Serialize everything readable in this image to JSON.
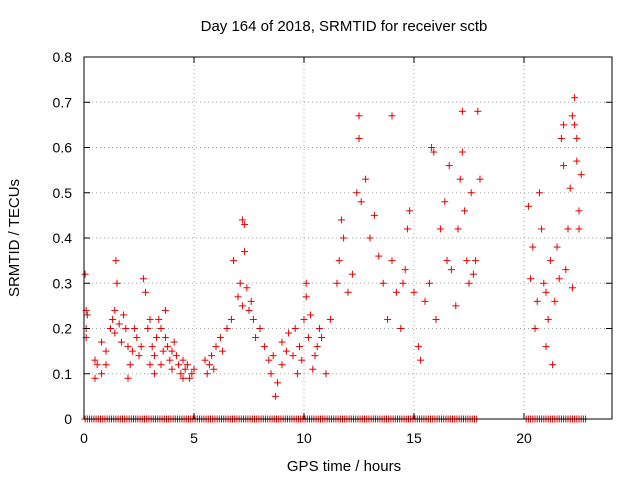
{
  "chart_data": {
    "type": "scatter",
    "title": "Day 164 of 2018, SRMTID for receiver sctb",
    "xlabel": "GPS time / hours",
    "ylabel": "SRMTID / TECUs",
    "xlim": [
      0,
      24
    ],
    "ylim": [
      0,
      0.8
    ],
    "xticks": [
      0,
      5,
      10,
      15,
      20
    ],
    "xtick_labels": [
      "0",
      "5",
      "10",
      "15",
      "20"
    ],
    "yticks": [
      0,
      0.1,
      0.2,
      0.3,
      0.4,
      0.5,
      0.6,
      0.7,
      0.8
    ],
    "ytick_labels": [
      "0",
      "0.1",
      "0.2",
      "0.3",
      "0.4",
      "0.5",
      "0.6",
      "0.7",
      "0.8"
    ],
    "grid": true,
    "marker": "+",
    "marker_color": "#e00000",
    "series": [
      {
        "name": "SRMTID",
        "points": [
          [
            0.05,
            0.32
          ],
          [
            0.1,
            0.24
          ],
          [
            0.1,
            0.2
          ],
          [
            0.1,
            0.18
          ],
          [
            0.15,
            0.23
          ],
          [
            0.5,
            0.13
          ],
          [
            0.5,
            0.09
          ],
          [
            0.6,
            0.12
          ],
          [
            0.8,
            0.17
          ],
          [
            0.8,
            0.1
          ],
          [
            1.0,
            0.15
          ],
          [
            1.0,
            0.12
          ],
          [
            1.2,
            0.2
          ],
          [
            1.3,
            0.22
          ],
          [
            1.4,
            0.19
          ],
          [
            1.4,
            0.24
          ],
          [
            1.45,
            0.35
          ],
          [
            1.5,
            0.3
          ],
          [
            1.6,
            0.21
          ],
          [
            1.7,
            0.17
          ],
          [
            1.8,
            0.23
          ],
          [
            1.9,
            0.2
          ],
          [
            2.0,
            0.16
          ],
          [
            2.0,
            0.09
          ],
          [
            2.1,
            0.12
          ],
          [
            2.2,
            0.15
          ],
          [
            2.3,
            0.2
          ],
          [
            2.4,
            0.18
          ],
          [
            2.5,
            0.14
          ],
          [
            2.6,
            0.16
          ],
          [
            2.7,
            0.31
          ],
          [
            2.8,
            0.28
          ],
          [
            2.9,
            0.2
          ],
          [
            3.0,
            0.22
          ],
          [
            3.0,
            0.12
          ],
          [
            3.1,
            0.16
          ],
          [
            3.2,
            0.1
          ],
          [
            3.2,
            0.14
          ],
          [
            3.3,
            0.18
          ],
          [
            3.4,
            0.22
          ],
          [
            3.5,
            0.2
          ],
          [
            3.5,
            0.12
          ],
          [
            3.6,
            0.15
          ],
          [
            3.7,
            0.24
          ],
          [
            3.7,
            0.18
          ],
          [
            3.8,
            0.16
          ],
          [
            3.9,
            0.13
          ],
          [
            4.0,
            0.11
          ],
          [
            4.0,
            0.15
          ],
          [
            4.1,
            0.17
          ],
          [
            4.2,
            0.14
          ],
          [
            4.3,
            0.12
          ],
          [
            4.4,
            0.1
          ],
          [
            4.5,
            0.09
          ],
          [
            4.5,
            0.13
          ],
          [
            4.6,
            0.11
          ],
          [
            4.7,
            0.12
          ],
          [
            4.8,
            0.09
          ],
          [
            4.9,
            0.1
          ],
          [
            5.0,
            0.11
          ],
          [
            5.5,
            0.13
          ],
          [
            5.6,
            0.1
          ],
          [
            5.7,
            0.12
          ],
          [
            5.8,
            0.14
          ],
          [
            5.9,
            0.11
          ],
          [
            6.0,
            0.16
          ],
          [
            6.2,
            0.18
          ],
          [
            6.3,
            0.15
          ],
          [
            6.5,
            0.2
          ],
          [
            6.7,
            0.22
          ],
          [
            6.8,
            0.35
          ],
          [
            7.0,
            0.27
          ],
          [
            7.1,
            0.3
          ],
          [
            7.2,
            0.25
          ],
          [
            7.2,
            0.44
          ],
          [
            7.3,
            0.43
          ],
          [
            7.3,
            0.37
          ],
          [
            7.4,
            0.29
          ],
          [
            7.5,
            0.24
          ],
          [
            7.6,
            0.26
          ],
          [
            7.7,
            0.22
          ],
          [
            7.8,
            0.18
          ],
          [
            8.0,
            0.2
          ],
          [
            8.2,
            0.16
          ],
          [
            8.4,
            0.13
          ],
          [
            8.5,
            0.1
          ],
          [
            8.6,
            0.14
          ],
          [
            8.7,
            0.05
          ],
          [
            8.8,
            0.08
          ],
          [
            9.0,
            0.12
          ],
          [
            9.0,
            0.17
          ],
          [
            9.2,
            0.15
          ],
          [
            9.3,
            0.19
          ],
          [
            9.5,
            0.14
          ],
          [
            9.6,
            0.2
          ],
          [
            9.7,
            0.1
          ],
          [
            9.8,
            0.16
          ],
          [
            9.9,
            0.13
          ],
          [
            10.0,
            0.22
          ],
          [
            10.1,
            0.27
          ],
          [
            10.1,
            0.3
          ],
          [
            10.2,
            0.18
          ],
          [
            10.3,
            0.23
          ],
          [
            10.4,
            0.11
          ],
          [
            10.5,
            0.14
          ],
          [
            10.6,
            0.16
          ],
          [
            10.7,
            0.2
          ],
          [
            10.8,
            0.18
          ],
          [
            11.0,
            0.1
          ],
          [
            11.2,
            0.22
          ],
          [
            11.5,
            0.3
          ],
          [
            11.6,
            0.35
          ],
          [
            11.7,
            0.44
          ],
          [
            11.8,
            0.4
          ],
          [
            12.0,
            0.28
          ],
          [
            12.2,
            0.32
          ],
          [
            12.4,
            0.5
          ],
          [
            12.5,
            0.62
          ],
          [
            12.5,
            0.67
          ],
          [
            12.6,
            0.48
          ],
          [
            12.8,
            0.53
          ],
          [
            13.0,
            0.4
          ],
          [
            13.2,
            0.45
          ],
          [
            13.4,
            0.36
          ],
          [
            13.6,
            0.3
          ],
          [
            13.8,
            0.22
          ],
          [
            14.0,
            0.67
          ],
          [
            14.0,
            0.35
          ],
          [
            14.2,
            0.28
          ],
          [
            14.4,
            0.2
          ],
          [
            14.5,
            0.3
          ],
          [
            14.6,
            0.33
          ],
          [
            14.7,
            0.42
          ],
          [
            14.8,
            0.46
          ],
          [
            15.0,
            0.28
          ],
          [
            15.2,
            0.16
          ],
          [
            15.3,
            0.13
          ],
          [
            15.5,
            0.26
          ],
          [
            15.7,
            0.3
          ],
          [
            15.8,
            0.6
          ],
          [
            15.9,
            0.59
          ],
          [
            16.0,
            0.22
          ],
          [
            16.2,
            0.42
          ],
          [
            16.4,
            0.48
          ],
          [
            16.5,
            0.35
          ],
          [
            16.6,
            0.56
          ],
          [
            16.7,
            0.33
          ],
          [
            16.9,
            0.25
          ],
          [
            17.0,
            0.42
          ],
          [
            17.1,
            0.53
          ],
          [
            17.2,
            0.68
          ],
          [
            17.2,
            0.59
          ],
          [
            17.3,
            0.46
          ],
          [
            17.4,
            0.35
          ],
          [
            17.5,
            0.3
          ],
          [
            17.6,
            0.5
          ],
          [
            17.7,
            0.32
          ],
          [
            17.8,
            0.35
          ],
          [
            17.9,
            0.68
          ],
          [
            18.0,
            0.53
          ],
          [
            20.2,
            0.47
          ],
          [
            20.3,
            0.31
          ],
          [
            20.4,
            0.38
          ],
          [
            20.5,
            0.2
          ],
          [
            20.6,
            0.26
          ],
          [
            20.7,
            0.5
          ],
          [
            20.8,
            0.42
          ],
          [
            20.9,
            0.3
          ],
          [
            21.0,
            0.16
          ],
          [
            21.0,
            0.28
          ],
          [
            21.1,
            0.22
          ],
          [
            21.2,
            0.35
          ],
          [
            21.3,
            0.12
          ],
          [
            21.4,
            0.26
          ],
          [
            21.5,
            0.38
          ],
          [
            21.6,
            0.31
          ],
          [
            21.7,
            0.62
          ],
          [
            21.8,
            0.65
          ],
          [
            21.8,
            0.56
          ],
          [
            21.9,
            0.33
          ],
          [
            22.0,
            0.42
          ],
          [
            22.1,
            0.51
          ],
          [
            22.2,
            0.67
          ],
          [
            22.3,
            0.71
          ],
          [
            22.3,
            0.65
          ],
          [
            22.4,
            0.62
          ],
          [
            22.4,
            0.57
          ],
          [
            22.5,
            0.46
          ],
          [
            22.5,
            0.42
          ],
          [
            22.6,
            0.54
          ],
          [
            22.2,
            0.29
          ]
        ],
        "zero_intervals": [
          [
            0.05,
            17.9
          ],
          [
            20.1,
            22.8
          ]
        ]
      }
    ]
  }
}
